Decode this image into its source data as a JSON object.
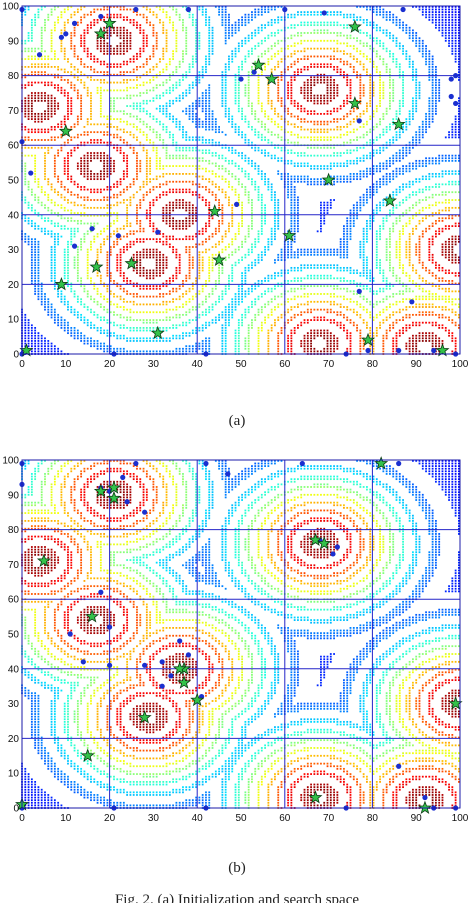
{
  "chart_data": [
    {
      "type": "scatter",
      "panel_label": "(a)",
      "background": "contour",
      "xlim": [
        0,
        100
      ],
      "ylim": [
        0,
        100
      ],
      "xticks": [
        0,
        10,
        20,
        30,
        40,
        50,
        60,
        70,
        80,
        90,
        100
      ],
      "yticks": [
        0,
        10,
        20,
        30,
        40,
        50,
        60,
        70,
        80,
        90,
        100
      ],
      "grid": true,
      "grid_lines": [
        0,
        20,
        40,
        60,
        80,
        100
      ],
      "peaks": [
        {
          "x": 21,
          "y": 90,
          "w": 3.2
        },
        {
          "x": 4,
          "y": 71,
          "w": 2.4
        },
        {
          "x": 17,
          "y": 54,
          "w": 3.0
        },
        {
          "x": 36,
          "y": 40,
          "w": 2.6
        },
        {
          "x": 29,
          "y": 26,
          "w": 2.6
        },
        {
          "x": 68,
          "y": 76,
          "w": 2.8
        },
        {
          "x": 100,
          "y": 30,
          "w": 3.2
        },
        {
          "x": 68,
          "y": 3,
          "w": 2.8
        },
        {
          "x": 92,
          "y": 2,
          "w": 2.6
        }
      ],
      "series": [
        {
          "marker": "circle",
          "color": "#1a2fd0",
          "points": [
            [
              4,
              86
            ],
            [
              9,
              91
            ],
            [
              10,
              92
            ],
            [
              12,
              95
            ],
            [
              18,
              97
            ],
            [
              20,
              95
            ],
            [
              38,
              99
            ],
            [
              50,
              79
            ],
            [
              53,
              81
            ],
            [
              60,
              99
            ],
            [
              69,
              98
            ],
            [
              77,
              67
            ],
            [
              87,
              99
            ],
            [
              98,
              79
            ],
            [
              99,
              80
            ],
            [
              99,
              72
            ],
            [
              98,
              74
            ],
            [
              0,
              61
            ],
            [
              2,
              52
            ],
            [
              49,
              43
            ],
            [
              12,
              31
            ],
            [
              16,
              36
            ],
            [
              22,
              34
            ],
            [
              31,
              35
            ],
            [
              77,
              18
            ],
            [
              89,
              15
            ],
            [
              86,
              1
            ],
            [
              94,
              1
            ],
            [
              0,
              0
            ],
            [
              21,
              0
            ],
            [
              42,
              0
            ],
            [
              74,
              0
            ],
            [
              79,
              1
            ],
            [
              99,
              0
            ],
            [
              0,
              99
            ],
            [
              26,
              99
            ]
          ]
        },
        {
          "marker": "star",
          "color": "#33c24a",
          "edge": "#0b3a14",
          "points": [
            [
              20,
              95
            ],
            [
              18,
              92
            ],
            [
              54,
              83
            ],
            [
              57,
              79
            ],
            [
              76,
              94
            ],
            [
              76,
              72
            ],
            [
              86,
              66
            ],
            [
              10,
              64
            ],
            [
              70,
              50
            ],
            [
              84,
              44
            ],
            [
              44,
              41
            ],
            [
              61,
              34
            ],
            [
              17,
              25
            ],
            [
              25,
              26
            ],
            [
              45,
              27
            ],
            [
              9,
              20
            ],
            [
              31,
              6
            ],
            [
              79,
              4
            ],
            [
              96,
              1
            ],
            [
              1,
              1
            ]
          ]
        }
      ]
    },
    {
      "type": "scatter",
      "panel_label": "(b)",
      "background": "contour",
      "xlim": [
        0,
        100
      ],
      "ylim": [
        0,
        100
      ],
      "xticks": [
        0,
        10,
        20,
        30,
        40,
        50,
        60,
        70,
        80,
        90,
        100
      ],
      "yticks": [
        0,
        10,
        20,
        30,
        40,
        50,
        60,
        70,
        80,
        90,
        100
      ],
      "grid": true,
      "grid_lines": [
        0,
        20,
        40,
        60,
        80,
        100
      ],
      "peaks": [
        {
          "x": 21,
          "y": 90,
          "w": 3.2
        },
        {
          "x": 4,
          "y": 71,
          "w": 2.4
        },
        {
          "x": 17,
          "y": 54,
          "w": 3.0
        },
        {
          "x": 36,
          "y": 40,
          "w": 2.6
        },
        {
          "x": 29,
          "y": 26,
          "w": 2.6
        },
        {
          "x": 68,
          "y": 76,
          "w": 2.8
        },
        {
          "x": 100,
          "y": 30,
          "w": 3.2
        },
        {
          "x": 68,
          "y": 3,
          "w": 2.8
        },
        {
          "x": 92,
          "y": 2,
          "w": 2.6
        }
      ],
      "series": [
        {
          "marker": "circle",
          "color": "#1a2fd0",
          "points": [
            [
              0,
              93
            ],
            [
              18,
              92
            ],
            [
              20,
              91
            ],
            [
              23,
              95
            ],
            [
              24,
              88
            ],
            [
              28,
              85
            ],
            [
              47,
              96
            ],
            [
              18,
              62
            ],
            [
              20,
              52
            ],
            [
              11,
              50
            ],
            [
              14,
              42
            ],
            [
              20,
              41
            ],
            [
              28,
              41
            ],
            [
              32,
              42
            ],
            [
              36,
              48
            ],
            [
              38,
              44
            ],
            [
              34,
              38
            ],
            [
              32,
              35
            ],
            [
              41,
              32
            ],
            [
              68,
              77
            ],
            [
              71,
              73
            ],
            [
              72,
              75
            ],
            [
              86,
              12
            ],
            [
              92,
              3
            ],
            [
              0,
              0
            ],
            [
              21,
              0
            ],
            [
              42,
              0
            ],
            [
              74,
              0
            ],
            [
              94,
              0
            ],
            [
              99,
              0
            ],
            [
              0,
              99
            ],
            [
              26,
              99
            ],
            [
              42,
              99
            ],
            [
              64,
              99
            ],
            [
              86,
              99
            ]
          ]
        },
        {
          "marker": "star",
          "color": "#33c24a",
          "edge": "#0b3a14",
          "points": [
            [
              18,
              91
            ],
            [
              21,
              92
            ],
            [
              21,
              89
            ],
            [
              82,
              99
            ],
            [
              67,
              77
            ],
            [
              69,
              76
            ],
            [
              5,
              71
            ],
            [
              16,
              55
            ],
            [
              37,
              40
            ],
            [
              36,
              40
            ],
            [
              37,
              36
            ],
            [
              40,
              31
            ],
            [
              28,
              26
            ],
            [
              15,
              15
            ],
            [
              99,
              30
            ],
            [
              67,
              3
            ],
            [
              92,
              0
            ],
            [
              0,
              1
            ]
          ]
        }
      ]
    }
  ],
  "captions": {
    "a": "(a)",
    "b": "(b)",
    "figure": "Fig. 2. (a) Initialization and search space"
  }
}
